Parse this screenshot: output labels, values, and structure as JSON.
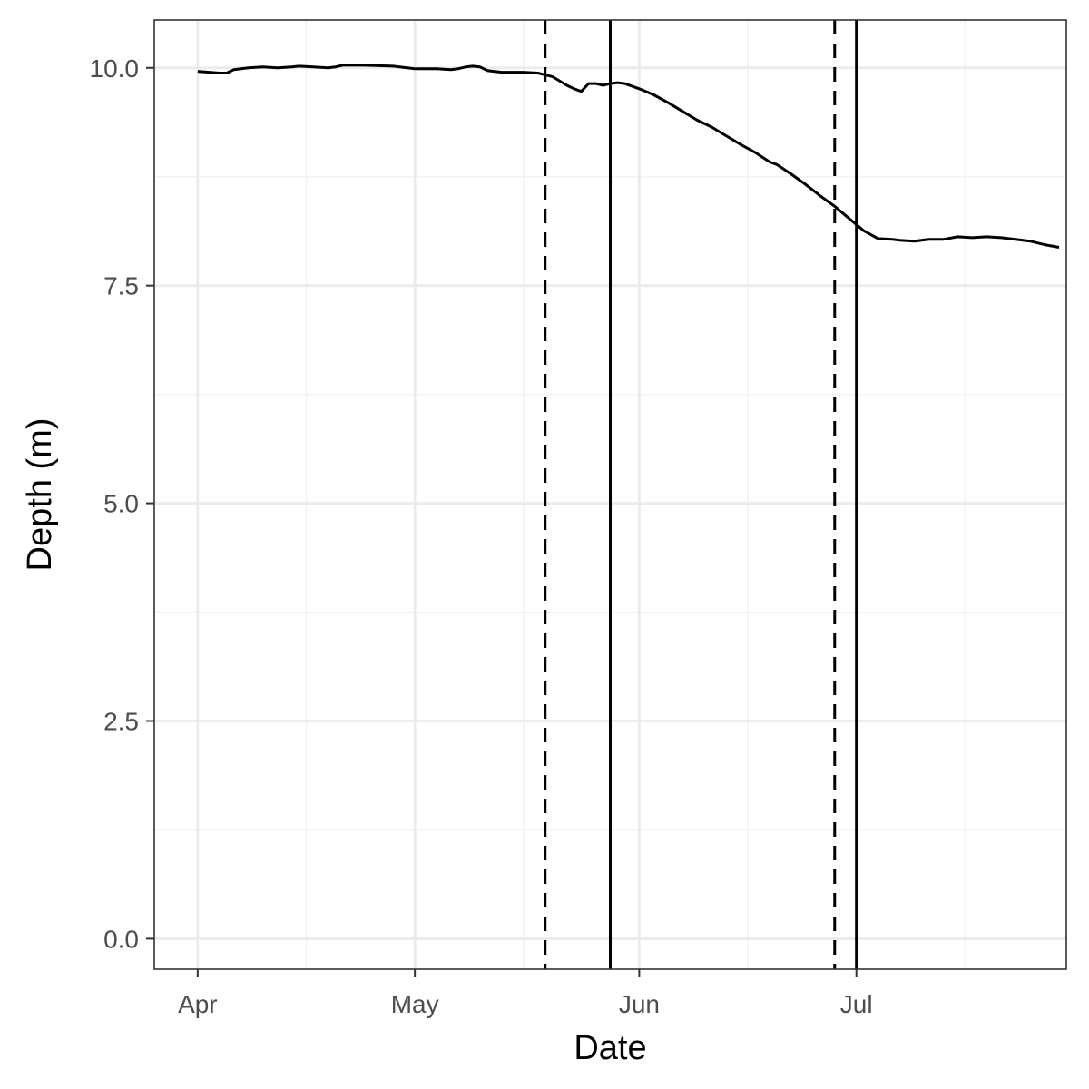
{
  "chart_data": {
    "type": "line",
    "title": "",
    "xlabel": "Date",
    "ylabel": "Depth (m)",
    "xlim": [
      "2020-03-26",
      "2020-07-30"
    ],
    "ylim": [
      -0.35,
      10.55
    ],
    "x_ticks": [
      {
        "date": "2020-04-01",
        "label": "Apr"
      },
      {
        "date": "2020-05-01",
        "label": "May"
      },
      {
        "date": "2020-06-01",
        "label": "Jun"
      },
      {
        "date": "2020-07-01",
        "label": "Jul"
      }
    ],
    "x_minor_ticks": [
      "2020-04-16",
      "2020-05-16",
      "2020-06-16",
      "2020-07-16"
    ],
    "y_ticks": [
      {
        "value": 0.0,
        "label": "0.0"
      },
      {
        "value": 2.5,
        "label": "2.5"
      },
      {
        "value": 5.0,
        "label": "5.0"
      },
      {
        "value": 7.5,
        "label": "7.5"
      },
      {
        "value": 10.0,
        "label": "10.0"
      }
    ],
    "y_minor_ticks": [
      1.25,
      3.75,
      6.25,
      8.75
    ],
    "grid": true,
    "series": [
      {
        "color": "#000000",
        "points": [
          [
            "2020-04-01",
            9.96
          ],
          [
            "2020-04-04",
            9.94
          ],
          [
            "2020-04-05",
            9.94
          ],
          [
            "2020-04-06",
            9.98
          ],
          [
            "2020-04-08",
            10.0
          ],
          [
            "2020-04-10",
            10.01
          ],
          [
            "2020-04-12",
            10.0
          ],
          [
            "2020-04-14",
            10.01
          ],
          [
            "2020-04-15",
            10.02
          ],
          [
            "2020-04-17",
            10.01
          ],
          [
            "2020-04-19",
            10.0
          ],
          [
            "2020-04-20",
            10.01
          ],
          [
            "2020-04-21",
            10.03
          ],
          [
            "2020-04-24",
            10.03
          ],
          [
            "2020-04-28",
            10.02
          ],
          [
            "2020-05-01",
            9.99
          ],
          [
            "2020-05-04",
            9.99
          ],
          [
            "2020-05-06",
            9.98
          ],
          [
            "2020-05-07",
            9.99
          ],
          [
            "2020-05-08",
            10.01
          ],
          [
            "2020-05-09",
            10.02
          ],
          [
            "2020-05-10",
            10.01
          ],
          [
            "2020-05-11",
            9.97
          ],
          [
            "2020-05-13",
            9.95
          ],
          [
            "2020-05-14",
            9.95
          ],
          [
            "2020-05-16",
            9.95
          ],
          [
            "2020-05-18",
            9.94
          ],
          [
            "2020-05-20",
            9.9
          ],
          [
            "2020-05-22",
            9.8
          ],
          [
            "2020-05-23",
            9.76
          ],
          [
            "2020-05-24",
            9.73
          ],
          [
            "2020-05-25",
            9.82
          ],
          [
            "2020-05-26",
            9.82
          ],
          [
            "2020-05-27",
            9.8
          ],
          [
            "2020-05-28",
            9.82
          ],
          [
            "2020-05-29",
            9.83
          ],
          [
            "2020-05-30",
            9.82
          ],
          [
            "2020-06-01",
            9.76
          ],
          [
            "2020-06-03",
            9.69
          ],
          [
            "2020-06-05",
            9.6
          ],
          [
            "2020-06-07",
            9.5
          ],
          [
            "2020-06-09",
            9.4
          ],
          [
            "2020-06-11",
            9.32
          ],
          [
            "2020-06-13",
            9.22
          ],
          [
            "2020-06-15",
            9.12
          ],
          [
            "2020-06-17",
            9.03
          ],
          [
            "2020-06-19",
            8.92
          ],
          [
            "2020-06-20",
            8.89
          ],
          [
            "2020-06-22",
            8.78
          ],
          [
            "2020-06-24",
            8.66
          ],
          [
            "2020-06-26",
            8.53
          ],
          [
            "2020-06-28",
            8.41
          ],
          [
            "2020-06-30",
            8.27
          ],
          [
            "2020-07-01",
            8.2
          ],
          [
            "2020-07-02",
            8.13
          ],
          [
            "2020-07-04",
            8.04
          ],
          [
            "2020-07-06",
            8.03
          ],
          [
            "2020-07-07",
            8.02
          ],
          [
            "2020-07-09",
            8.01
          ],
          [
            "2020-07-11",
            8.03
          ],
          [
            "2020-07-13",
            8.03
          ],
          [
            "2020-07-15",
            8.06
          ],
          [
            "2020-07-17",
            8.05
          ],
          [
            "2020-07-19",
            8.06
          ],
          [
            "2020-07-21",
            8.05
          ],
          [
            "2020-07-23",
            8.03
          ],
          [
            "2020-07-25",
            8.01
          ],
          [
            "2020-07-27",
            7.97
          ],
          [
            "2020-07-29",
            7.94
          ]
        ]
      }
    ],
    "vertical_lines": [
      {
        "date": "2020-05-19",
        "style": "dashed",
        "color": "#000000"
      },
      {
        "date": "2020-05-28",
        "style": "solid",
        "color": "#000000"
      },
      {
        "date": "2020-06-28",
        "style": "dashed",
        "color": "#000000"
      },
      {
        "date": "2020-07-01",
        "style": "solid",
        "color": "#000000"
      }
    ],
    "colors": {
      "grid_major": "#ebebeb",
      "grid_minor": "#f2f2f2",
      "panel_border": "#333333",
      "tick_label": "#4d4d4d"
    }
  }
}
